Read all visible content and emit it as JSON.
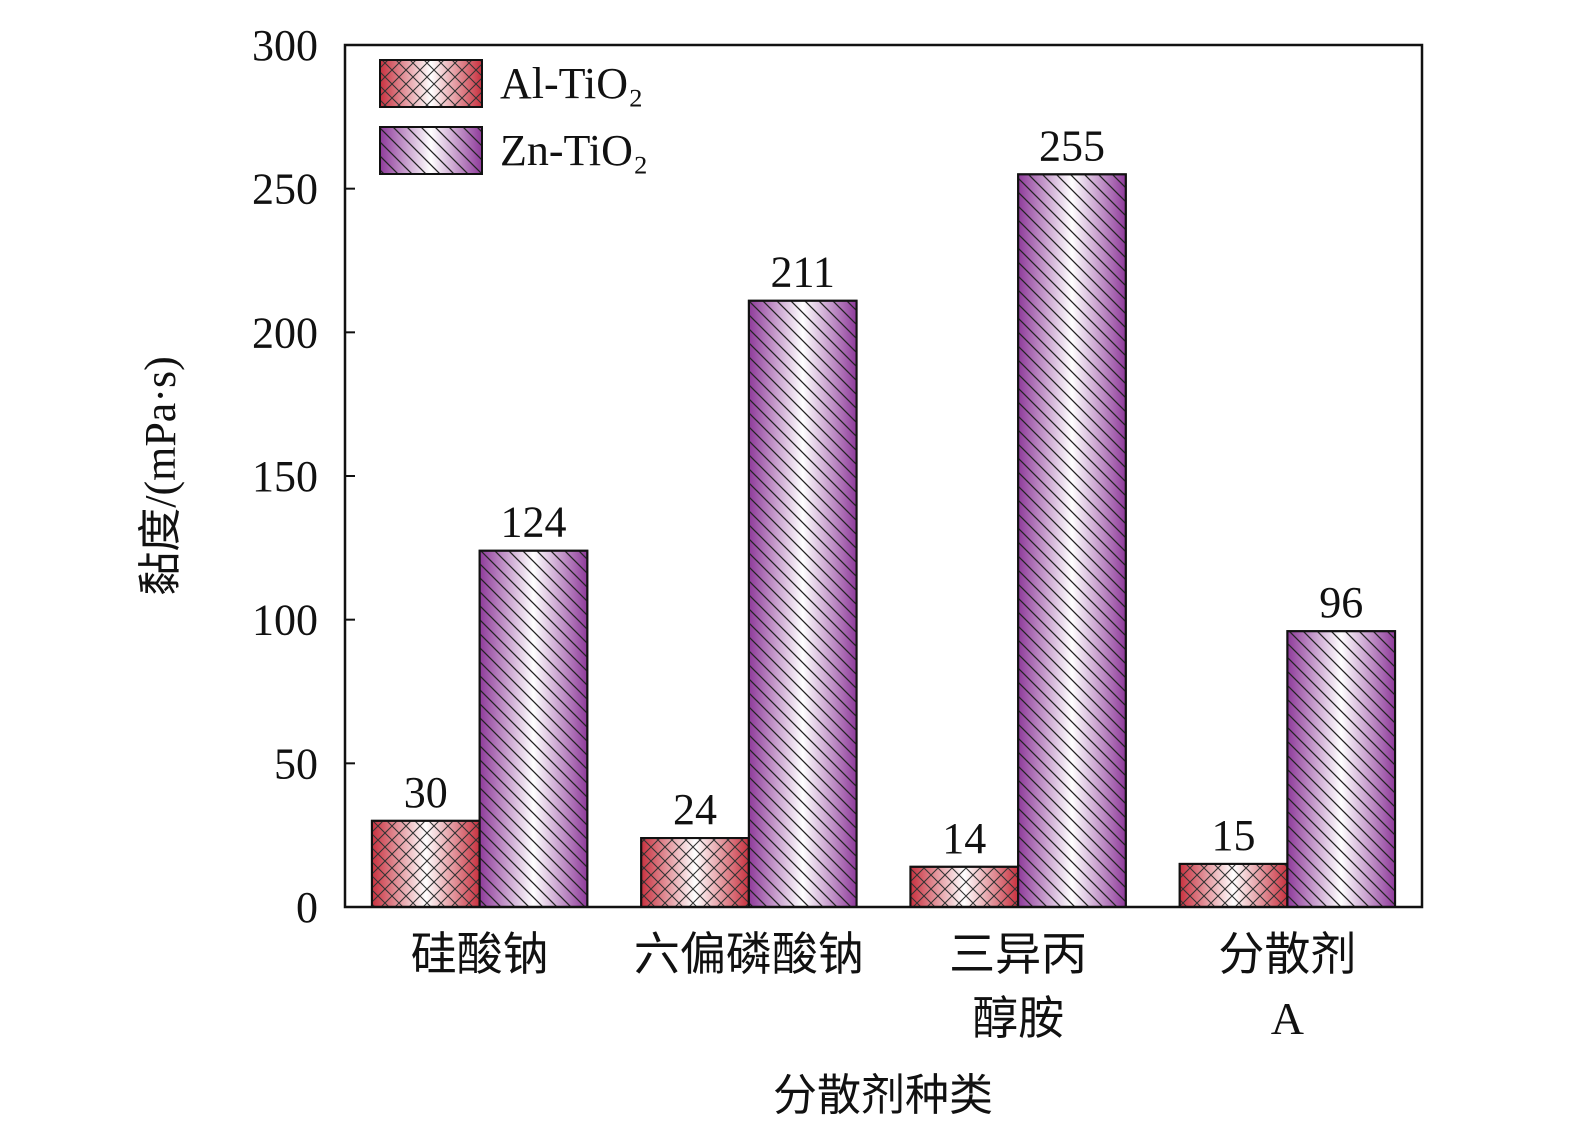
{
  "chart_data": {
    "type": "bar",
    "ylabel": "黏度/(mPa·s)",
    "xlabel": "分散剂种类",
    "categories": [
      [
        "硅酸钠"
      ],
      [
        "六偏磷酸钠"
      ],
      [
        "三异丙",
        "醇胺"
      ],
      [
        "分散剂",
        "A"
      ]
    ],
    "series": [
      {
        "name": "Al-TiO₂",
        "color": "#c8313f",
        "hatch": "cross",
        "values": [
          30,
          24,
          14,
          15
        ]
      },
      {
        "name": "Zn-TiO₂",
        "color": "#8e3a9a",
        "hatch": "diagonal",
        "values": [
          124,
          211,
          255,
          96
        ]
      }
    ],
    "ylim": [
      0,
      300
    ],
    "yticks": [
      0,
      50,
      100,
      150,
      200,
      250,
      300
    ],
    "legend": "upper left"
  }
}
